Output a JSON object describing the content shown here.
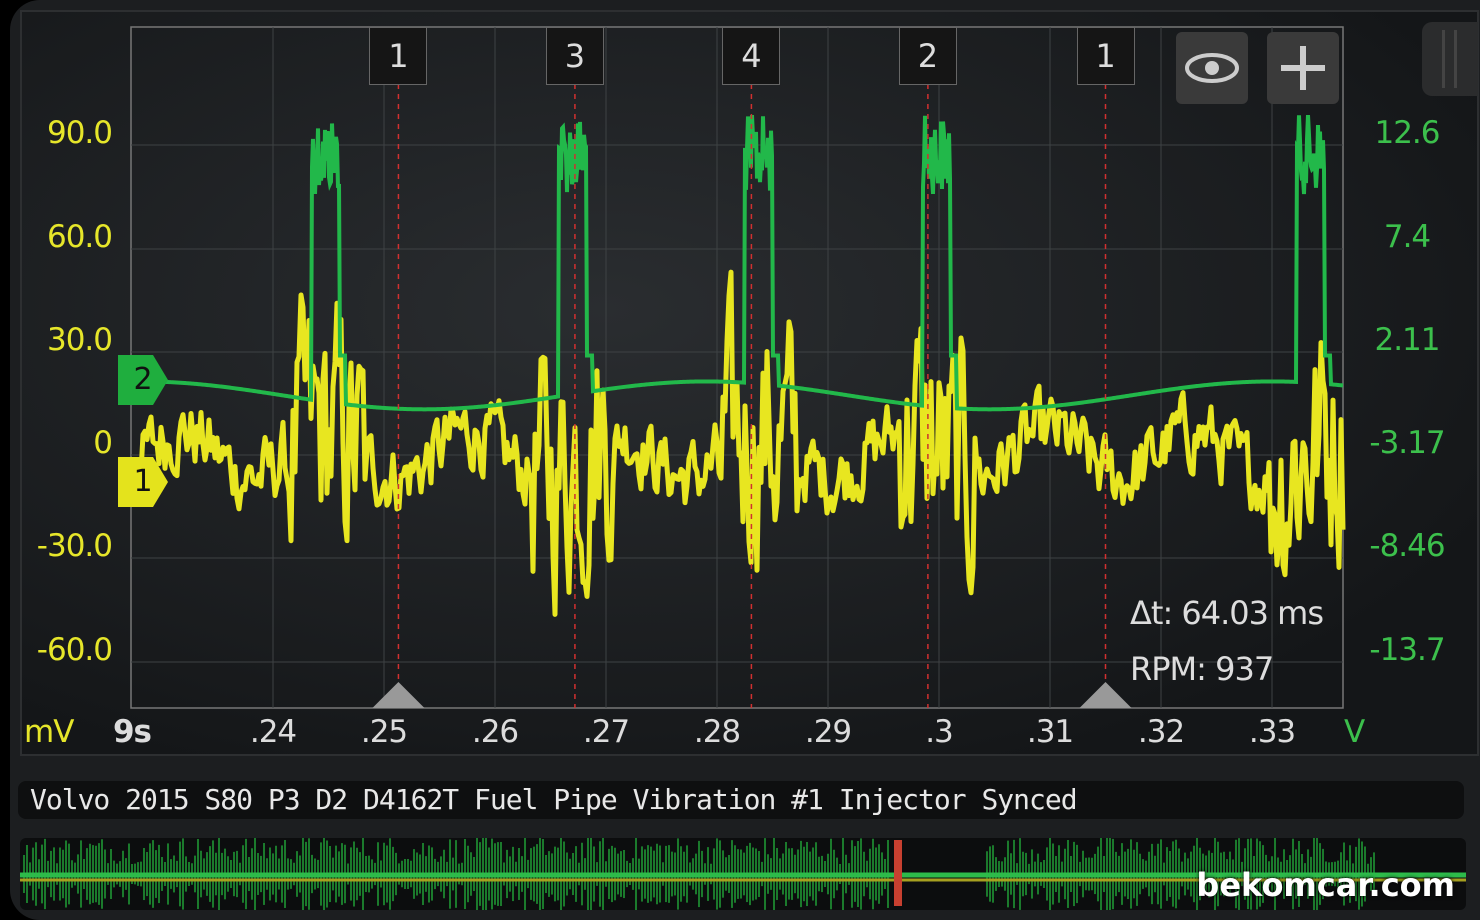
{
  "colors": {
    "channel1": "#e8e620",
    "channel2": "#22b84a",
    "cursor": "#d03030",
    "background": "#16181a"
  },
  "left_axis": {
    "unit": "mV",
    "ticks": [
      "90.0",
      "60.0",
      "30.0",
      "0",
      "-30.0",
      "-60.0"
    ]
  },
  "right_axis": {
    "unit": "V",
    "ticks": [
      "12.6",
      "7.4",
      "2.11",
      "-3.17",
      "-8.46",
      "-13.7"
    ]
  },
  "time_axis": {
    "ticks": [
      "9s",
      ".24",
      ".25",
      ".26",
      ".27",
      ".28",
      ".29",
      ".3",
      ".31",
      ".32",
      ".33"
    ]
  },
  "cylinder_markers": [
    {
      "label": "1",
      "time": 0.2513
    },
    {
      "label": "3",
      "time": 0.2672
    },
    {
      "label": "4",
      "time": 0.2831
    },
    {
      "label": "2",
      "time": 0.299
    },
    {
      "label": "1",
      "time": 0.315
    }
  ],
  "channels": [
    {
      "label": "2",
      "name": "channel-2"
    },
    {
      "label": "1",
      "name": "channel-1"
    }
  ],
  "toolbar": {
    "view_icon": "eye-icon",
    "add_icon": "plus-icon"
  },
  "readouts": {
    "delta_t": "Δt: 64.03 ms",
    "rpm": "RPM: 937"
  },
  "recording_title": "Volvo 2015 S80 P3 D2 D4162T Fuel Pipe Vibration #1 Injector Synced",
  "watermark": "bekomcar.com",
  "chart_data": {
    "type": "line",
    "x_range": [
      0.238,
      0.337
    ],
    "series": [
      {
        "name": "1",
        "axis": "left",
        "unit": "mV",
        "ylim": [
          -75,
          105
        ]
      },
      {
        "name": "2",
        "axis": "right",
        "unit": "V",
        "ylim": [
          -16.3,
          17.9
        ],
        "baseline": -0.6,
        "spike_times": [
          0.2447,
          0.267,
          0.2837,
          0.2998,
          0.3335
        ],
        "spike_peak": 13.5
      }
    ]
  }
}
